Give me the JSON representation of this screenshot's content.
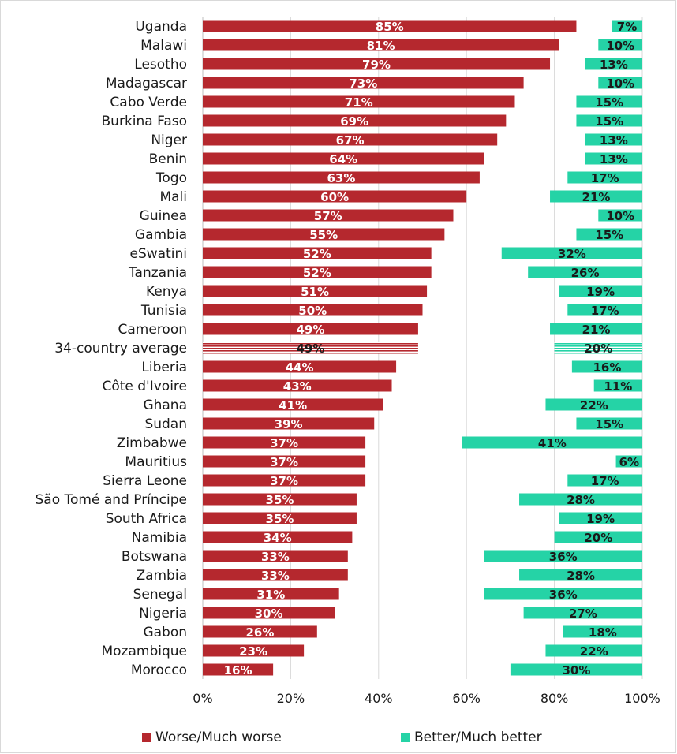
{
  "chart_data": {
    "type": "bar",
    "orientation": "horizontal",
    "categories": [
      "Uganda",
      "Malawi",
      "Lesotho",
      "Madagascar",
      "Cabo Verde",
      "Burkina Faso",
      "Niger",
      "Benin",
      "Togo",
      "Mali",
      "Guinea",
      "Gambia",
      "eSwatini",
      "Tanzania",
      "Kenya",
      "Tunisia",
      "Cameroon",
      "34-country average",
      "Liberia",
      "Côte d'Ivoire",
      "Ghana",
      "Sudan",
      "Zimbabwe",
      "Mauritius",
      "Sierra Leone",
      "São Tomé and Príncipe",
      "South Africa",
      "Namibia",
      "Botswana",
      "Zambia",
      "Senegal",
      "Nigeria",
      "Gabon",
      "Mozambique",
      "Morocco"
    ],
    "series": [
      {
        "name": "Worse/Much worse",
        "color": "#b5282e",
        "anchor": "left",
        "values": [
          85,
          81,
          79,
          73,
          71,
          69,
          67,
          64,
          63,
          60,
          57,
          55,
          52,
          52,
          51,
          50,
          49,
          49,
          44,
          43,
          41,
          39,
          37,
          37,
          37,
          35,
          35,
          34,
          33,
          33,
          31,
          30,
          26,
          23,
          16
        ],
        "labels": [
          "85%",
          "81%",
          "79%",
          "73%",
          "71%",
          "69%",
          "67%",
          "64%",
          "63%",
          "60%",
          "57%",
          "55%",
          "52%",
          "52%",
          "51%",
          "50%",
          "49%",
          "49%",
          "44%",
          "43%",
          "41%",
          "39%",
          "37%",
          "37%",
          "37%",
          "35%",
          "35%",
          "34%",
          "33%",
          "33%",
          "31%",
          "30%",
          "26%",
          "23%",
          "16%"
        ]
      },
      {
        "name": "Better/Much better",
        "color": "#25d3a6",
        "anchor": "right",
        "values": [
          7,
          10,
          13,
          10,
          15,
          15,
          13,
          13,
          17,
          21,
          10,
          15,
          32,
          26,
          19,
          17,
          21,
          20,
          16,
          11,
          22,
          15,
          41,
          6,
          17,
          28,
          19,
          20,
          36,
          28,
          36,
          27,
          18,
          22,
          30
        ],
        "labels": [
          "7%",
          "10%",
          "13%",
          "10%",
          "15%",
          "15%",
          "13%",
          "13%",
          "17%",
          "21%",
          "10%",
          "15%",
          "32%",
          "26%",
          "19%",
          "17%",
          "21%",
          "20%",
          "16%",
          "11%",
          "22%",
          "15%",
          "41%",
          "6%",
          "17%",
          "28%",
          "19%",
          "20%",
          "36%",
          "28%",
          "36%",
          "27%",
          "18%",
          "22%",
          "30%"
        ]
      }
    ],
    "highlight_category": "34-country average",
    "xlim": [
      0,
      100
    ],
    "x_ticks": [
      "0%",
      "20%",
      "40%",
      "60%",
      "80%",
      "100%"
    ],
    "grid": "vertical",
    "legend_position": "bottom"
  }
}
